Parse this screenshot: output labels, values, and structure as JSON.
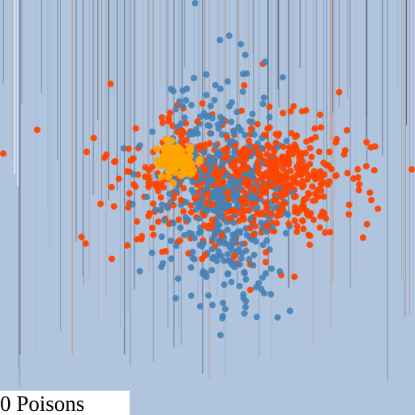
{
  "game": {
    "background_color": "#b0c4de",
    "stripe_colors": [
      "#0d1b2a",
      "#c97a52",
      "#8aa0b8",
      "#3e4a5a"
    ],
    "population": {
      "blue_color": "#4682b4",
      "red_color": "#ff4500",
      "gold_color": "#ffa500"
    },
    "status": {
      "text": "0 Poisons"
    }
  }
}
